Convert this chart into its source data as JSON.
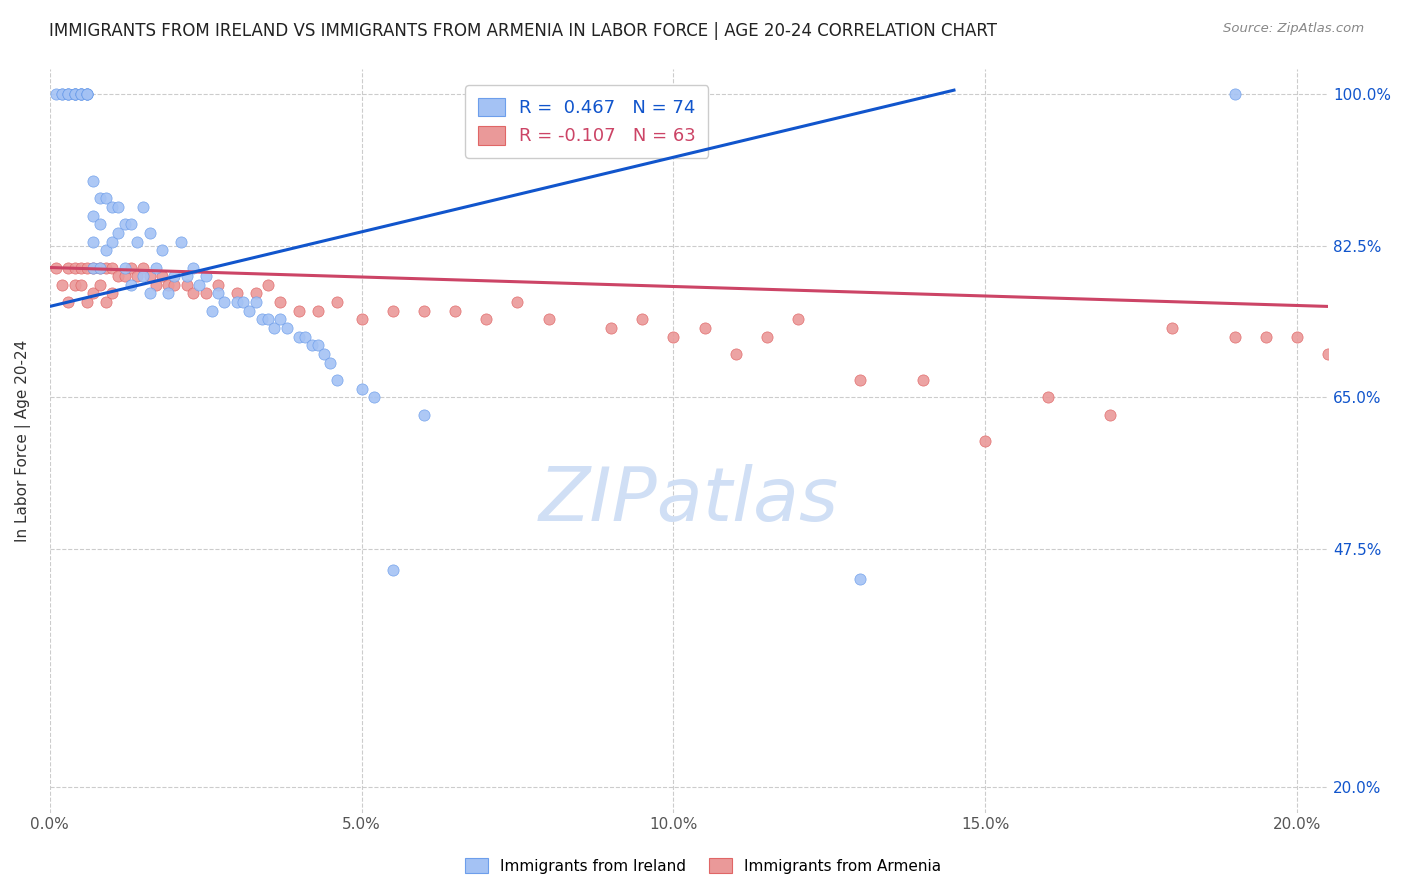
{
  "title": "IMMIGRANTS FROM IRELAND VS IMMIGRANTS FROM ARMENIA IN LABOR FORCE | AGE 20-24 CORRELATION CHART",
  "source": "Source: ZipAtlas.com",
  "ylabel": "In Labor Force | Age 20-24",
  "x_tick_labels": [
    "0.0%",
    "5.0%",
    "10.0%",
    "15.0%",
    "20.0%"
  ],
  "x_tick_positions": [
    0.0,
    0.05,
    0.1,
    0.15,
    0.2
  ],
  "y_tick_labels": [
    "100.0%",
    "82.5%",
    "65.0%",
    "47.5%",
    "20.0%"
  ],
  "y_tick_values": [
    1.0,
    0.825,
    0.65,
    0.475,
    0.2
  ],
  "xlim": [
    0.0,
    0.205
  ],
  "ylim": [
    0.17,
    1.03
  ],
  "ireland_R": 0.467,
  "ireland_N": 74,
  "armenia_R": -0.107,
  "armenia_N": 63,
  "ireland_color": "#a4c2f4",
  "armenia_color": "#ea9999",
  "ireland_edge_color": "#6d9eeb",
  "armenia_edge_color": "#e06666",
  "ireland_line_color": "#1155cc",
  "armenia_line_color": "#cc4466",
  "watermark_color": "#d0dff5",
  "ireland_scatter_x": [
    0.001,
    0.002,
    0.002,
    0.003,
    0.003,
    0.003,
    0.004,
    0.004,
    0.004,
    0.004,
    0.005,
    0.005,
    0.005,
    0.005,
    0.006,
    0.006,
    0.006,
    0.006,
    0.007,
    0.007,
    0.007,
    0.007,
    0.008,
    0.008,
    0.008,
    0.009,
    0.009,
    0.01,
    0.01,
    0.011,
    0.011,
    0.012,
    0.012,
    0.013,
    0.013,
    0.014,
    0.015,
    0.015,
    0.016,
    0.016,
    0.017,
    0.018,
    0.019,
    0.02,
    0.021,
    0.022,
    0.023,
    0.024,
    0.025,
    0.026,
    0.027,
    0.028,
    0.03,
    0.031,
    0.032,
    0.033,
    0.034,
    0.035,
    0.036,
    0.037,
    0.038,
    0.04,
    0.041,
    0.042,
    0.043,
    0.044,
    0.045,
    0.046,
    0.05,
    0.052,
    0.055,
    0.06,
    0.13,
    0.19
  ],
  "ireland_scatter_y": [
    1.0,
    1.0,
    1.0,
    1.0,
    1.0,
    1.0,
    1.0,
    1.0,
    1.0,
    1.0,
    1.0,
    1.0,
    1.0,
    1.0,
    1.0,
    1.0,
    1.0,
    1.0,
    0.9,
    0.86,
    0.83,
    0.8,
    0.88,
    0.85,
    0.8,
    0.88,
    0.82,
    0.87,
    0.83,
    0.87,
    0.84,
    0.85,
    0.8,
    0.85,
    0.78,
    0.83,
    0.87,
    0.79,
    0.84,
    0.77,
    0.8,
    0.82,
    0.77,
    0.79,
    0.83,
    0.79,
    0.8,
    0.78,
    0.79,
    0.75,
    0.77,
    0.76,
    0.76,
    0.76,
    0.75,
    0.76,
    0.74,
    0.74,
    0.73,
    0.74,
    0.73,
    0.72,
    0.72,
    0.71,
    0.71,
    0.7,
    0.69,
    0.67,
    0.66,
    0.65,
    0.45,
    0.63,
    0.44,
    1.0
  ],
  "armenia_scatter_x": [
    0.001,
    0.002,
    0.003,
    0.003,
    0.004,
    0.004,
    0.005,
    0.005,
    0.006,
    0.006,
    0.007,
    0.007,
    0.008,
    0.008,
    0.009,
    0.009,
    0.01,
    0.01,
    0.011,
    0.012,
    0.013,
    0.014,
    0.015,
    0.016,
    0.017,
    0.018,
    0.019,
    0.02,
    0.022,
    0.023,
    0.025,
    0.027,
    0.03,
    0.033,
    0.035,
    0.037,
    0.04,
    0.043,
    0.046,
    0.05,
    0.055,
    0.06,
    0.065,
    0.07,
    0.075,
    0.08,
    0.09,
    0.095,
    0.1,
    0.105,
    0.11,
    0.115,
    0.12,
    0.13,
    0.14,
    0.15,
    0.16,
    0.17,
    0.18,
    0.19,
    0.195,
    0.2,
    0.205
  ],
  "armenia_scatter_y": [
    0.8,
    0.78,
    0.8,
    0.76,
    0.8,
    0.78,
    0.8,
    0.78,
    0.8,
    0.76,
    0.8,
    0.77,
    0.8,
    0.78,
    0.8,
    0.76,
    0.8,
    0.77,
    0.79,
    0.79,
    0.8,
    0.79,
    0.8,
    0.79,
    0.78,
    0.79,
    0.78,
    0.78,
    0.78,
    0.77,
    0.77,
    0.78,
    0.77,
    0.77,
    0.78,
    0.76,
    0.75,
    0.75,
    0.76,
    0.74,
    0.75,
    0.75,
    0.75,
    0.74,
    0.76,
    0.74,
    0.73,
    0.74,
    0.72,
    0.73,
    0.7,
    0.72,
    0.74,
    0.67,
    0.67,
    0.6,
    0.65,
    0.63,
    0.73,
    0.72,
    0.72,
    0.72,
    0.7
  ],
  "ireland_line_x": [
    0.0,
    0.145
  ],
  "ireland_line_y": [
    0.755,
    1.005
  ],
  "armenia_line_x": [
    0.0,
    0.205
  ],
  "armenia_line_y": [
    0.8,
    0.755
  ]
}
